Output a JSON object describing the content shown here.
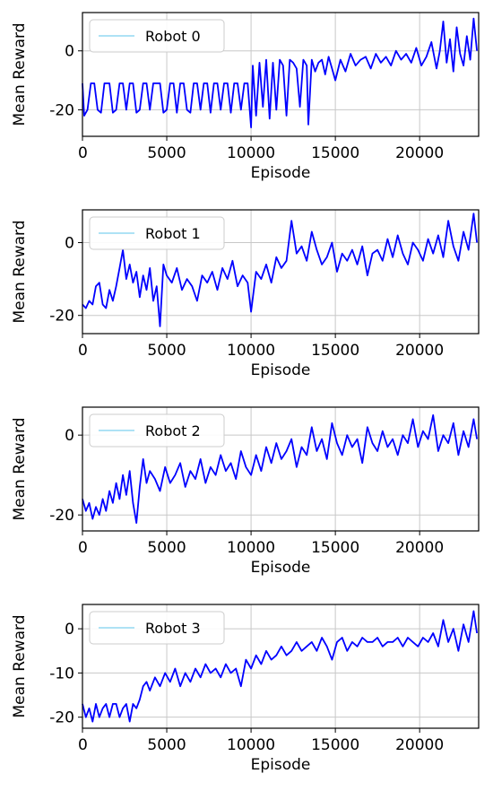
{
  "colors": {
    "series": "#0000ff",
    "legend_swatch": "#aee2f5",
    "grid": "#c8c8c8"
  },
  "chart_data": [
    {
      "type": "line",
      "xlabel": "Episode",
      "ylabel": "Mean Reward",
      "xlim": [
        0,
        23500
      ],
      "ylim": [
        -29,
        13
      ],
      "xticks": [
        0,
        5000,
        10000,
        15000,
        20000
      ],
      "yticks": [
        -20,
        0
      ],
      "xtick_labels": [
        "0",
        "5000",
        "10000",
        "15000",
        "20000"
      ],
      "ytick_labels": [
        "-20",
        "0"
      ],
      "grid": true,
      "legend_position": "top-left",
      "series": [
        {
          "name": "Robot 0",
          "x": [
            0,
            100,
            300,
            500,
            700,
            900,
            1100,
            1300,
            1400,
            1600,
            1800,
            2000,
            2200,
            2400,
            2600,
            2800,
            3000,
            3200,
            3400,
            3600,
            3800,
            4000,
            4200,
            4400,
            4600,
            4800,
            5000,
            5200,
            5400,
            5600,
            5800,
            6000,
            6200,
            6400,
            6600,
            6800,
            7000,
            7200,
            7400,
            7600,
            7800,
            8000,
            8200,
            8400,
            8600,
            8800,
            9000,
            9200,
            9400,
            9600,
            9800,
            10000,
            10100,
            10300,
            10500,
            10700,
            10900,
            11100,
            11300,
            11500,
            11700,
            11900,
            12100,
            12300,
            12500,
            12700,
            12900,
            13100,
            13300,
            13400,
            13600,
            13800,
            14000,
            14200,
            14400,
            14600,
            14800,
            15000,
            15300,
            15600,
            15900,
            16200,
            16500,
            16800,
            17100,
            17400,
            17700,
            18000,
            18300,
            18600,
            18900,
            19200,
            19500,
            19800,
            20100,
            20400,
            20700,
            21000,
            21200,
            21400,
            21600,
            21800,
            22000,
            22200,
            22400,
            22600,
            22800,
            23000,
            23200,
            23400
          ],
          "y": [
            -11,
            -22,
            -20,
            -11,
            -11,
            -20,
            -21,
            -11,
            -11,
            -11,
            -21,
            -20,
            -11,
            -11,
            -20,
            -11,
            -11,
            -21,
            -20,
            -11,
            -11,
            -20,
            -11,
            -11,
            -11,
            -21,
            -20,
            -11,
            -11,
            -21,
            -11,
            -11,
            -20,
            -21,
            -11,
            -11,
            -20,
            -11,
            -11,
            -21,
            -11,
            -11,
            -20,
            -11,
            -11,
            -21,
            -11,
            -11,
            -20,
            -11,
            -11,
            -26,
            -5,
            -22,
            -4,
            -19,
            -3,
            -23,
            -4,
            -20,
            -3,
            -5,
            -22,
            -3,
            -4,
            -6,
            -19,
            -3,
            -5,
            -25,
            -3,
            -7,
            -4,
            -3,
            -8,
            -2,
            -6,
            -10,
            -3,
            -7,
            -1,
            -5,
            -3,
            -2,
            -6,
            -1,
            -4,
            -2,
            -5,
            0,
            -3,
            -1,
            -4,
            1,
            -5,
            -2,
            3,
            -6,
            0,
            10,
            -4,
            4,
            -7,
            8,
            -1,
            -5,
            5,
            -3,
            11,
            0
          ],
          "values_unit": "mean reward"
        }
      ]
    },
    {
      "type": "line",
      "xlabel": "Episode",
      "ylabel": "Mean Reward",
      "xlim": [
        0,
        23500
      ],
      "ylim": [
        -25,
        9
      ],
      "xticks": [
        0,
        5000,
        10000,
        15000,
        20000
      ],
      "yticks": [
        -20,
        0
      ],
      "xtick_labels": [
        "0",
        "5000",
        "10000",
        "15000",
        "20000"
      ],
      "ytick_labels": [
        "-20",
        "0"
      ],
      "grid": true,
      "legend_position": "top-left",
      "series": [
        {
          "name": "Robot 1",
          "x": [
            0,
            200,
            400,
            600,
            800,
            1000,
            1200,
            1400,
            1600,
            1800,
            2000,
            2200,
            2400,
            2600,
            2800,
            3000,
            3200,
            3400,
            3600,
            3800,
            4000,
            4200,
            4400,
            4600,
            4800,
            5000,
            5300,
            5600,
            5900,
            6200,
            6500,
            6800,
            7100,
            7400,
            7700,
            8000,
            8300,
            8600,
            8900,
            9200,
            9500,
            9800,
            10000,
            10300,
            10600,
            10900,
            11200,
            11500,
            11800,
            12100,
            12400,
            12700,
            13000,
            13300,
            13600,
            13900,
            14200,
            14500,
            14800,
            15100,
            15400,
            15700,
            16000,
            16300,
            16600,
            16900,
            17200,
            17500,
            17800,
            18100,
            18400,
            18700,
            19000,
            19300,
            19600,
            19900,
            20200,
            20500,
            20800,
            21100,
            21400,
            21700,
            22000,
            22300,
            22600,
            22900,
            23200,
            23400
          ],
          "y": [
            -17,
            -18,
            -16,
            -17,
            -12,
            -11,
            -17,
            -18,
            -13,
            -16,
            -12,
            -7,
            -2,
            -10,
            -6,
            -11,
            -8,
            -15,
            -9,
            -13,
            -7,
            -16,
            -12,
            -23,
            -6,
            -9,
            -11,
            -7,
            -13,
            -10,
            -12,
            -16,
            -9,
            -11,
            -8,
            -13,
            -7,
            -10,
            -5,
            -12,
            -9,
            -11,
            -19,
            -8,
            -10,
            -6,
            -11,
            -4,
            -7,
            -5,
            6,
            -3,
            -1,
            -5,
            3,
            -2,
            -6,
            -4,
            0,
            -8,
            -3,
            -5,
            -2,
            -6,
            -1,
            -9,
            -3,
            -2,
            -5,
            1,
            -4,
            2,
            -3,
            -6,
            0,
            -2,
            -5,
            1,
            -3,
            2,
            -4,
            6,
            -1,
            -5,
            3,
            -2,
            8,
            0
          ],
          "values_unit": "mean reward"
        }
      ]
    },
    {
      "type": "line",
      "xlabel": "Episode",
      "ylabel": "Mean Reward",
      "xlim": [
        0,
        23500
      ],
      "ylim": [
        -24,
        7
      ],
      "xticks": [
        0,
        5000,
        10000,
        15000,
        20000
      ],
      "yticks": [
        -20,
        0
      ],
      "xtick_labels": [
        "0",
        "5000",
        "10000",
        "15000",
        "20000"
      ],
      "ytick_labels": [
        "-20",
        "0"
      ],
      "grid": true,
      "legend_position": "top-left",
      "series": [
        {
          "name": "Robot 2",
          "x": [
            0,
            200,
            400,
            600,
            800,
            1000,
            1200,
            1400,
            1600,
            1800,
            2000,
            2200,
            2400,
            2600,
            2800,
            3000,
            3200,
            3400,
            3600,
            3800,
            4000,
            4300,
            4600,
            4900,
            5200,
            5500,
            5800,
            6100,
            6400,
            6700,
            7000,
            7300,
            7600,
            7900,
            8200,
            8500,
            8800,
            9100,
            9400,
            9700,
            10000,
            10300,
            10600,
            10900,
            11200,
            11500,
            11800,
            12100,
            12400,
            12700,
            13000,
            13300,
            13600,
            13900,
            14200,
            14500,
            14800,
            15100,
            15400,
            15700,
            16000,
            16300,
            16600,
            16900,
            17200,
            17500,
            17800,
            18100,
            18400,
            18700,
            19000,
            19300,
            19600,
            19900,
            20200,
            20500,
            20800,
            21100,
            21400,
            21700,
            22000,
            22300,
            22600,
            22900,
            23200,
            23400
          ],
          "y": [
            -16,
            -19,
            -17,
            -21,
            -18,
            -20,
            -16,
            -19,
            -14,
            -17,
            -12,
            -16,
            -10,
            -15,
            -9,
            -17,
            -22,
            -13,
            -6,
            -12,
            -9,
            -11,
            -14,
            -8,
            -12,
            -10,
            -7,
            -13,
            -9,
            -11,
            -6,
            -12,
            -8,
            -10,
            -5,
            -9,
            -7,
            -11,
            -4,
            -8,
            -10,
            -5,
            -9,
            -3,
            -7,
            -2,
            -6,
            -4,
            -1,
            -8,
            -3,
            -5,
            2,
            -4,
            -1,
            -6,
            3,
            -2,
            -5,
            0,
            -3,
            -1,
            -7,
            2,
            -2,
            -4,
            1,
            -3,
            -1,
            -5,
            0,
            -2,
            4,
            -3,
            1,
            -1,
            5,
            -4,
            0,
            -2,
            3,
            -5,
            1,
            -3,
            4,
            -1
          ],
          "values_unit": "mean reward"
        }
      ]
    },
    {
      "type": "line",
      "xlabel": "Episode",
      "ylabel": "Mean Reward",
      "xlim": [
        0,
        23500
      ],
      "ylim": [
        -22.5,
        5.5
      ],
      "xticks": [
        0,
        5000,
        10000,
        15000,
        20000
      ],
      "yticks": [
        -20,
        -10,
        0
      ],
      "xtick_labels": [
        "0",
        "5000",
        "10000",
        "15000",
        "20000"
      ],
      "ytick_labels": [
        "-20",
        "-10",
        "0"
      ],
      "grid": true,
      "legend_position": "top-left",
      "series": [
        {
          "name": "Robot 3",
          "x": [
            0,
            200,
            400,
            600,
            800,
            1000,
            1200,
            1400,
            1600,
            1800,
            2000,
            2200,
            2400,
            2600,
            2800,
            3000,
            3200,
            3400,
            3600,
            3800,
            4000,
            4300,
            4600,
            4900,
            5200,
            5500,
            5800,
            6100,
            6400,
            6700,
            7000,
            7300,
            7600,
            7900,
            8200,
            8500,
            8800,
            9100,
            9400,
            9700,
            10000,
            10300,
            10600,
            10900,
            11200,
            11500,
            11800,
            12100,
            12400,
            12700,
            13000,
            13300,
            13600,
            13900,
            14200,
            14500,
            14800,
            15100,
            15400,
            15700,
            16000,
            16300,
            16600,
            16900,
            17200,
            17500,
            17800,
            18100,
            18400,
            18700,
            19000,
            19300,
            19600,
            19900,
            20200,
            20500,
            20800,
            21100,
            21400,
            21700,
            22000,
            22300,
            22600,
            22900,
            23200,
            23400
          ],
          "y": [
            -17,
            -20,
            -18,
            -21,
            -17,
            -20,
            -18,
            -17,
            -20,
            -17,
            -17,
            -20,
            -18,
            -17,
            -21,
            -17,
            -18,
            -16,
            -13,
            -12,
            -14,
            -11,
            -13,
            -10,
            -12,
            -9,
            -13,
            -10,
            -12,
            -9,
            -11,
            -8,
            -10,
            -9,
            -11,
            -8,
            -10,
            -9,
            -13,
            -7,
            -9,
            -6,
            -8,
            -5,
            -7,
            -6,
            -4,
            -6,
            -5,
            -3,
            -5,
            -4,
            -3,
            -5,
            -2,
            -4,
            -7,
            -3,
            -2,
            -5,
            -3,
            -4,
            -2,
            -3,
            -3,
            -2,
            -4,
            -3,
            -3,
            -2,
            -4,
            -2,
            -3,
            -4,
            -2,
            -3,
            -1,
            -4,
            2,
            -3,
            0,
            -5,
            1,
            -3,
            4,
            -1
          ],
          "values_unit": "mean reward"
        }
      ]
    }
  ]
}
